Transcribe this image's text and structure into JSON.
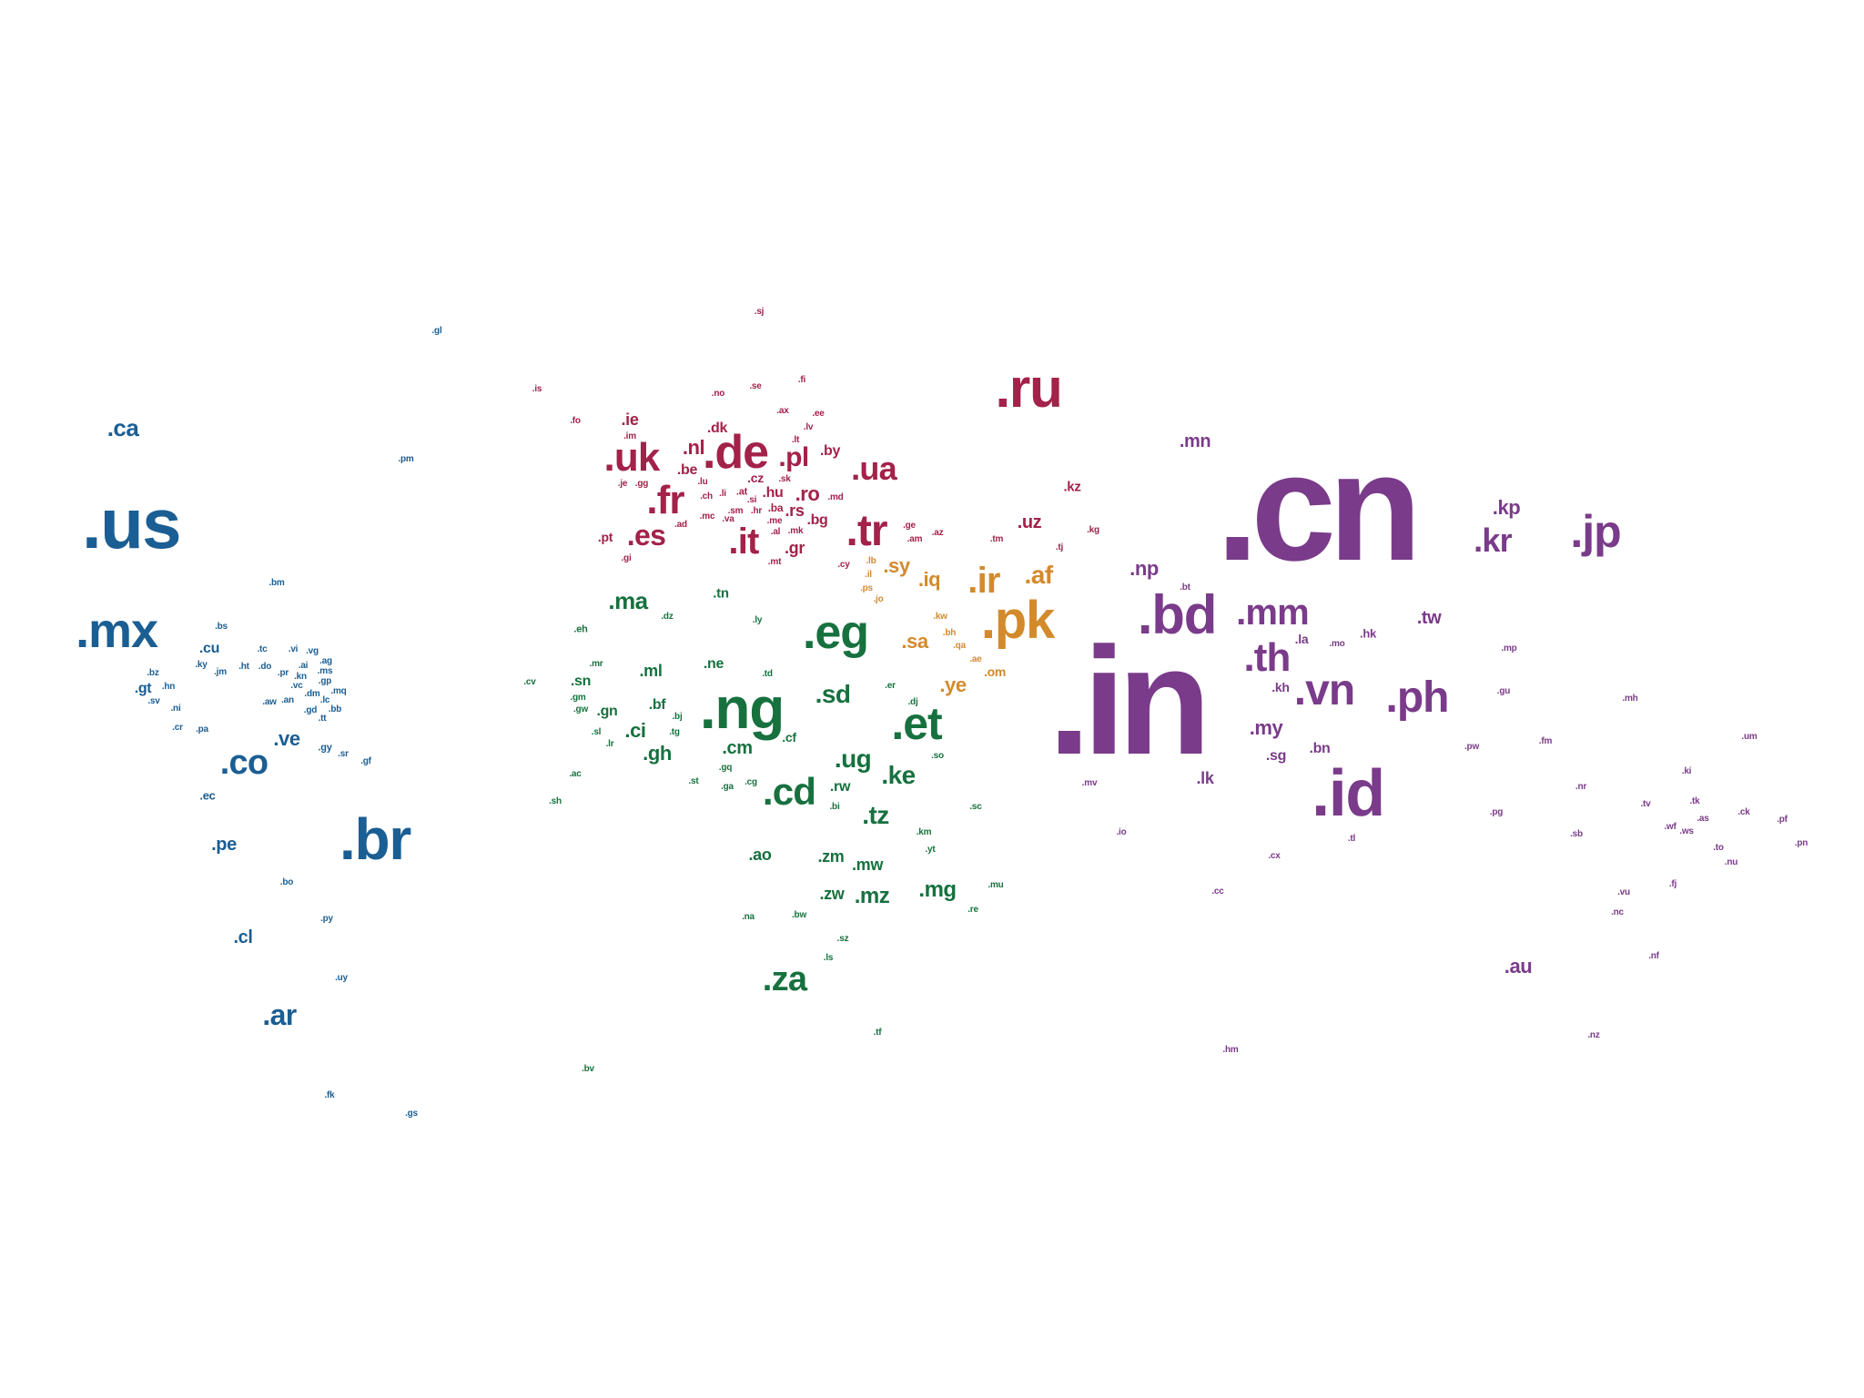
{
  "colors": {
    "americas": "#1b5e93",
    "europe": "#a3224a",
    "middle_east": "#d38a2c",
    "africa": "#17713f",
    "asia_pacific": "#7a3b8a",
    "background": "#ffffff"
  },
  "groups": [
    {
      "region": "americas",
      "labels": [
        ".ca",
        ".us",
        ".mx",
        ".br",
        ".co",
        ".ve",
        ".gt",
        ".cu",
        ".pe",
        ".cl",
        ".ar",
        ".ec",
        ".bo",
        ".py",
        ".uy",
        ".fk",
        ".gs",
        ".bm",
        ".bs",
        ".tc",
        ".vi",
        ".vg",
        ".bz",
        ".ky",
        ".jm",
        ".ht",
        ".do",
        ".pr",
        ".ai",
        ".ag",
        ".kn",
        ".ms",
        ".gp",
        ".vc",
        ".mq",
        ".dm",
        ".lc",
        ".bb",
        ".gd",
        ".aw",
        ".an",
        ".hn",
        ".sv",
        ".ni",
        ".cr",
        ".pa",
        ".tt",
        ".gy",
        ".sr",
        ".gf",
        ".pm",
        ".gl"
      ]
    },
    {
      "region": "europe",
      "labels": [
        ".ru",
        ".uk",
        ".de",
        ".fr",
        ".es",
        ".it",
        ".tr",
        ".ua",
        ".pl",
        ".nl",
        ".be",
        ".dk",
        ".cz",
        ".hu",
        ".ro",
        ".rs",
        ".bg",
        ".gr",
        ".by",
        ".lv",
        ".lt",
        ".ee",
        ".ax",
        ".fi",
        ".se",
        ".no",
        ".is",
        ".fo",
        ".ie",
        ".im",
        ".je",
        ".gg",
        ".lu",
        ".ch",
        ".li",
        ".at",
        ".si",
        ".sk",
        ".hr",
        ".ba",
        ".me",
        ".al",
        ".mk",
        ".md",
        ".pt",
        ".ad",
        ".mc",
        ".va",
        ".sm",
        ".mt",
        ".gi",
        ".ge",
        ".am",
        ".az",
        ".cy",
        ".kz",
        ".uz",
        ".tm",
        ".tj",
        ".kg",
        ".sj"
      ]
    },
    {
      "region": "middle_east",
      "labels": [
        ".pk",
        ".ir",
        ".af",
        ".iq",
        ".sy",
        ".sa",
        ".ye",
        ".om",
        ".ae",
        ".qa",
        ".bh",
        ".kw",
        ".jo",
        ".ps",
        ".il",
        ".lb"
      ]
    },
    {
      "region": "africa",
      "labels": [
        ".ng",
        ".eg",
        ".et",
        ".cd",
        ".za",
        ".ke",
        ".tz",
        ".ug",
        ".sd",
        ".ma",
        ".dz",
        ".tn",
        ".ly",
        ".eh",
        ".mr",
        ".ml",
        ".ne",
        ".td",
        ".sn",
        ".gm",
        ".gw",
        ".gn",
        ".sl",
        ".lr",
        ".ci",
        ".bf",
        ".gh",
        ".tg",
        ".bj",
        ".cm",
        ".cf",
        ".gq",
        ".ga",
        ".cg",
        ".st",
        ".rw",
        ".bi",
        ".ao",
        ".zm",
        ".mw",
        ".zw",
        ".mz",
        ".mg",
        ".na",
        ".bw",
        ".sz",
        ".ls",
        ".so",
        ".er",
        ".dj",
        ".km",
        ".yt",
        ".mu",
        ".re",
        ".sc",
        ".cv",
        ".ac",
        ".sh",
        ".tf",
        ".bv"
      ]
    },
    {
      "region": "asia_pacific",
      "labels": [
        ".cn",
        ".in",
        ".id",
        ".jp",
        ".kr",
        ".kp",
        ".bd",
        ".mm",
        ".th",
        ".vn",
        ".ph",
        ".my",
        ".np",
        ".mn",
        ".tw",
        ".lk",
        ".sg",
        ".bn",
        ".kh",
        ".la",
        ".mo",
        ".hk",
        ".bt",
        ".mv",
        ".io",
        ".tl",
        ".cx",
        ".cc",
        ".hm",
        ".au",
        ".nz",
        ".nf",
        ".pg",
        ".sb",
        ".vu",
        ".nc",
        ".fj",
        ".tv",
        ".ki",
        ".tk",
        ".ws",
        ".as",
        ".wf",
        ".ck",
        ".pf",
        ".to",
        ".nu",
        ".pn",
        ".mp",
        ".gu",
        ".pw",
        ".fm",
        ".mh",
        ".um",
        ".nr"
      ]
    }
  ]
}
